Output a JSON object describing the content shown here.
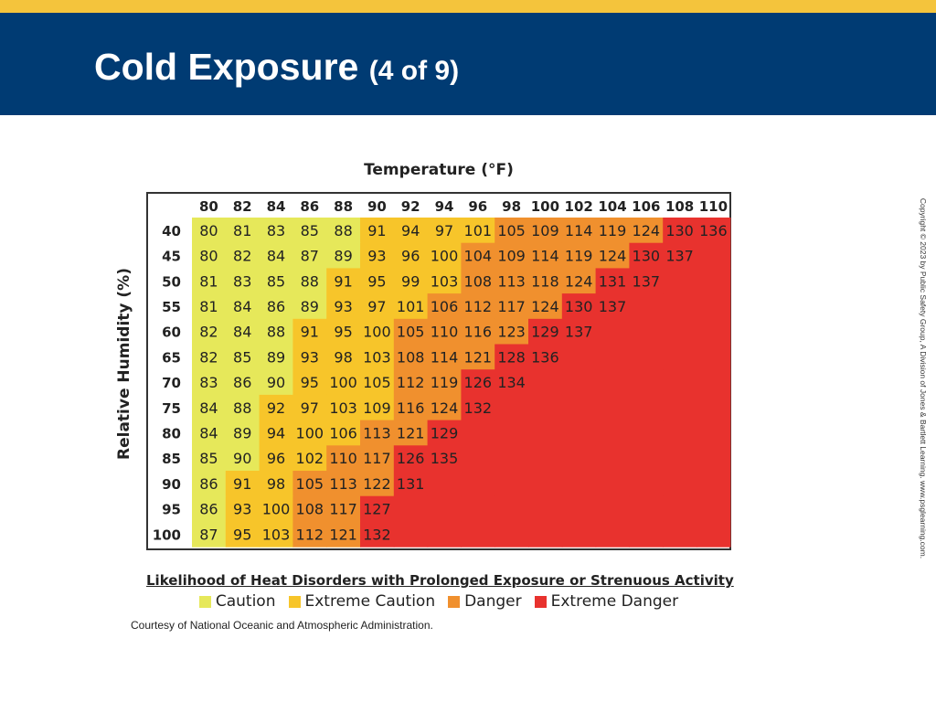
{
  "slide": {
    "title": "Cold Exposure",
    "title_suffix": "(4 of 9)",
    "credit": "Courtesy of National Oceanic and Atmospheric Administration.",
    "copyright": "Copyright © 2023 by Public Safety Group, A Division of Jones & Bartlett Learning. www.psglearning.com."
  },
  "colors": {
    "header_band": "#003b73",
    "top_stripe": "#f4c43c",
    "caution": "#e6e85a",
    "extreme_caution": "#f7c52a",
    "danger": "#f0902e",
    "extreme_danger": "#e8322e"
  },
  "chart_data": {
    "type": "heatmap",
    "title": "Temperature (°F)",
    "ylabel": "Relative Humidity (%)",
    "x": [
      "80",
      "82",
      "84",
      "86",
      "88",
      "90",
      "92",
      "94",
      "96",
      "98",
      "100",
      "102",
      "104",
      "106",
      "108",
      "110"
    ],
    "y": [
      "40",
      "45",
      "50",
      "55",
      "60",
      "65",
      "70",
      "75",
      "80",
      "85",
      "90",
      "95",
      "100"
    ],
    "values": [
      [
        80,
        81,
        83,
        85,
        88,
        91,
        94,
        97,
        101,
        105,
        109,
        114,
        119,
        124,
        130,
        136
      ],
      [
        80,
        82,
        84,
        87,
        89,
        93,
        96,
        100,
        104,
        109,
        114,
        119,
        124,
        130,
        137
      ],
      [
        81,
        83,
        85,
        88,
        91,
        95,
        99,
        103,
        108,
        113,
        118,
        124,
        131,
        137
      ],
      [
        81,
        84,
        86,
        89,
        93,
        97,
        101,
        106,
        112,
        117,
        124,
        130,
        137
      ],
      [
        82,
        84,
        88,
        91,
        95,
        100,
        105,
        110,
        116,
        123,
        129,
        137
      ],
      [
        82,
        85,
        89,
        93,
        98,
        103,
        108,
        114,
        121,
        128,
        136
      ],
      [
        83,
        86,
        90,
        95,
        100,
        105,
        112,
        119,
        126,
        134
      ],
      [
        84,
        88,
        92,
        97,
        103,
        109,
        116,
        124,
        132
      ],
      [
        84,
        89,
        94,
        100,
        106,
        113,
        121,
        129
      ],
      [
        85,
        90,
        96,
        102,
        110,
        117,
        126,
        135
      ],
      [
        86,
        91,
        98,
        105,
        113,
        122,
        131
      ],
      [
        86,
        93,
        100,
        108,
        117,
        127
      ],
      [
        87,
        95,
        103,
        112,
        121,
        132
      ]
    ],
    "categories": [
      [
        0,
        0,
        0,
        0,
        0,
        1,
        1,
        1,
        1,
        2,
        2,
        2,
        2,
        2,
        3,
        3
      ],
      [
        0,
        0,
        0,
        0,
        0,
        1,
        1,
        1,
        2,
        2,
        2,
        2,
        2,
        3,
        3
      ],
      [
        0,
        0,
        0,
        0,
        1,
        1,
        1,
        1,
        2,
        2,
        2,
        2,
        3,
        3
      ],
      [
        0,
        0,
        0,
        0,
        1,
        1,
        1,
        2,
        2,
        2,
        2,
        3,
        3
      ],
      [
        0,
        0,
        0,
        1,
        1,
        1,
        2,
        2,
        2,
        2,
        3,
        3
      ],
      [
        0,
        0,
        0,
        1,
        1,
        1,
        2,
        2,
        2,
        3,
        3
      ],
      [
        0,
        0,
        0,
        1,
        1,
        1,
        2,
        2,
        3,
        3
      ],
      [
        0,
        0,
        1,
        1,
        1,
        1,
        2,
        2,
        3
      ],
      [
        0,
        0,
        1,
        1,
        1,
        2,
        2,
        3
      ],
      [
        0,
        0,
        1,
        1,
        2,
        2,
        3,
        3
      ],
      [
        0,
        1,
        1,
        2,
        2,
        2,
        3
      ],
      [
        0,
        1,
        1,
        2,
        2,
        3
      ],
      [
        0,
        1,
        1,
        2,
        2,
        3
      ]
    ],
    "empty_cell_category": 3,
    "legend": {
      "title": "Likelihood of Heat Disorders with Prolonged Exposure or Strenuous Activity",
      "placement": "bottom",
      "entries": [
        "Caution",
        "Extreme Caution",
        "Danger",
        "Extreme Danger"
      ]
    }
  }
}
